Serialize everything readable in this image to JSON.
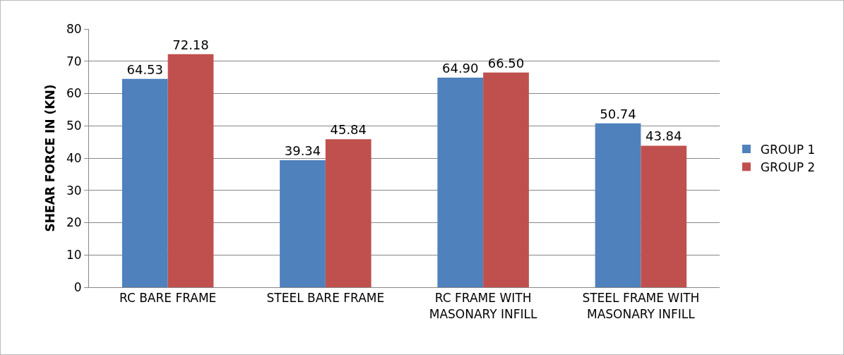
{
  "chart_data": {
    "type": "bar",
    "ylabel": "SHEAR FORCE IN (KN)",
    "categories": [
      "RC BARE FRAME",
      "STEEL BARE FRAME",
      "RC FRAME WITH MASONARY INFILL",
      "STEEL FRAME WITH MASONARY INFILL"
    ],
    "series": [
      {
        "name": "GROUP 1",
        "color": "#4f81bd",
        "values": [
          64.53,
          39.34,
          64.9,
          50.74
        ],
        "value_labels": [
          "64.53",
          "39.34",
          "64.90",
          "50.74"
        ]
      },
      {
        "name": "GROUP 2",
        "color": "#c0504d",
        "values": [
          72.18,
          45.84,
          66.5,
          43.84
        ],
        "value_labels": [
          "72.18",
          "45.84",
          "66.50",
          "43.84"
        ]
      }
    ],
    "ylim": [
      0,
      80
    ],
    "yticks": [
      0,
      10,
      20,
      30,
      40,
      50,
      60,
      70,
      80
    ],
    "grid": "y",
    "legend": "right"
  }
}
